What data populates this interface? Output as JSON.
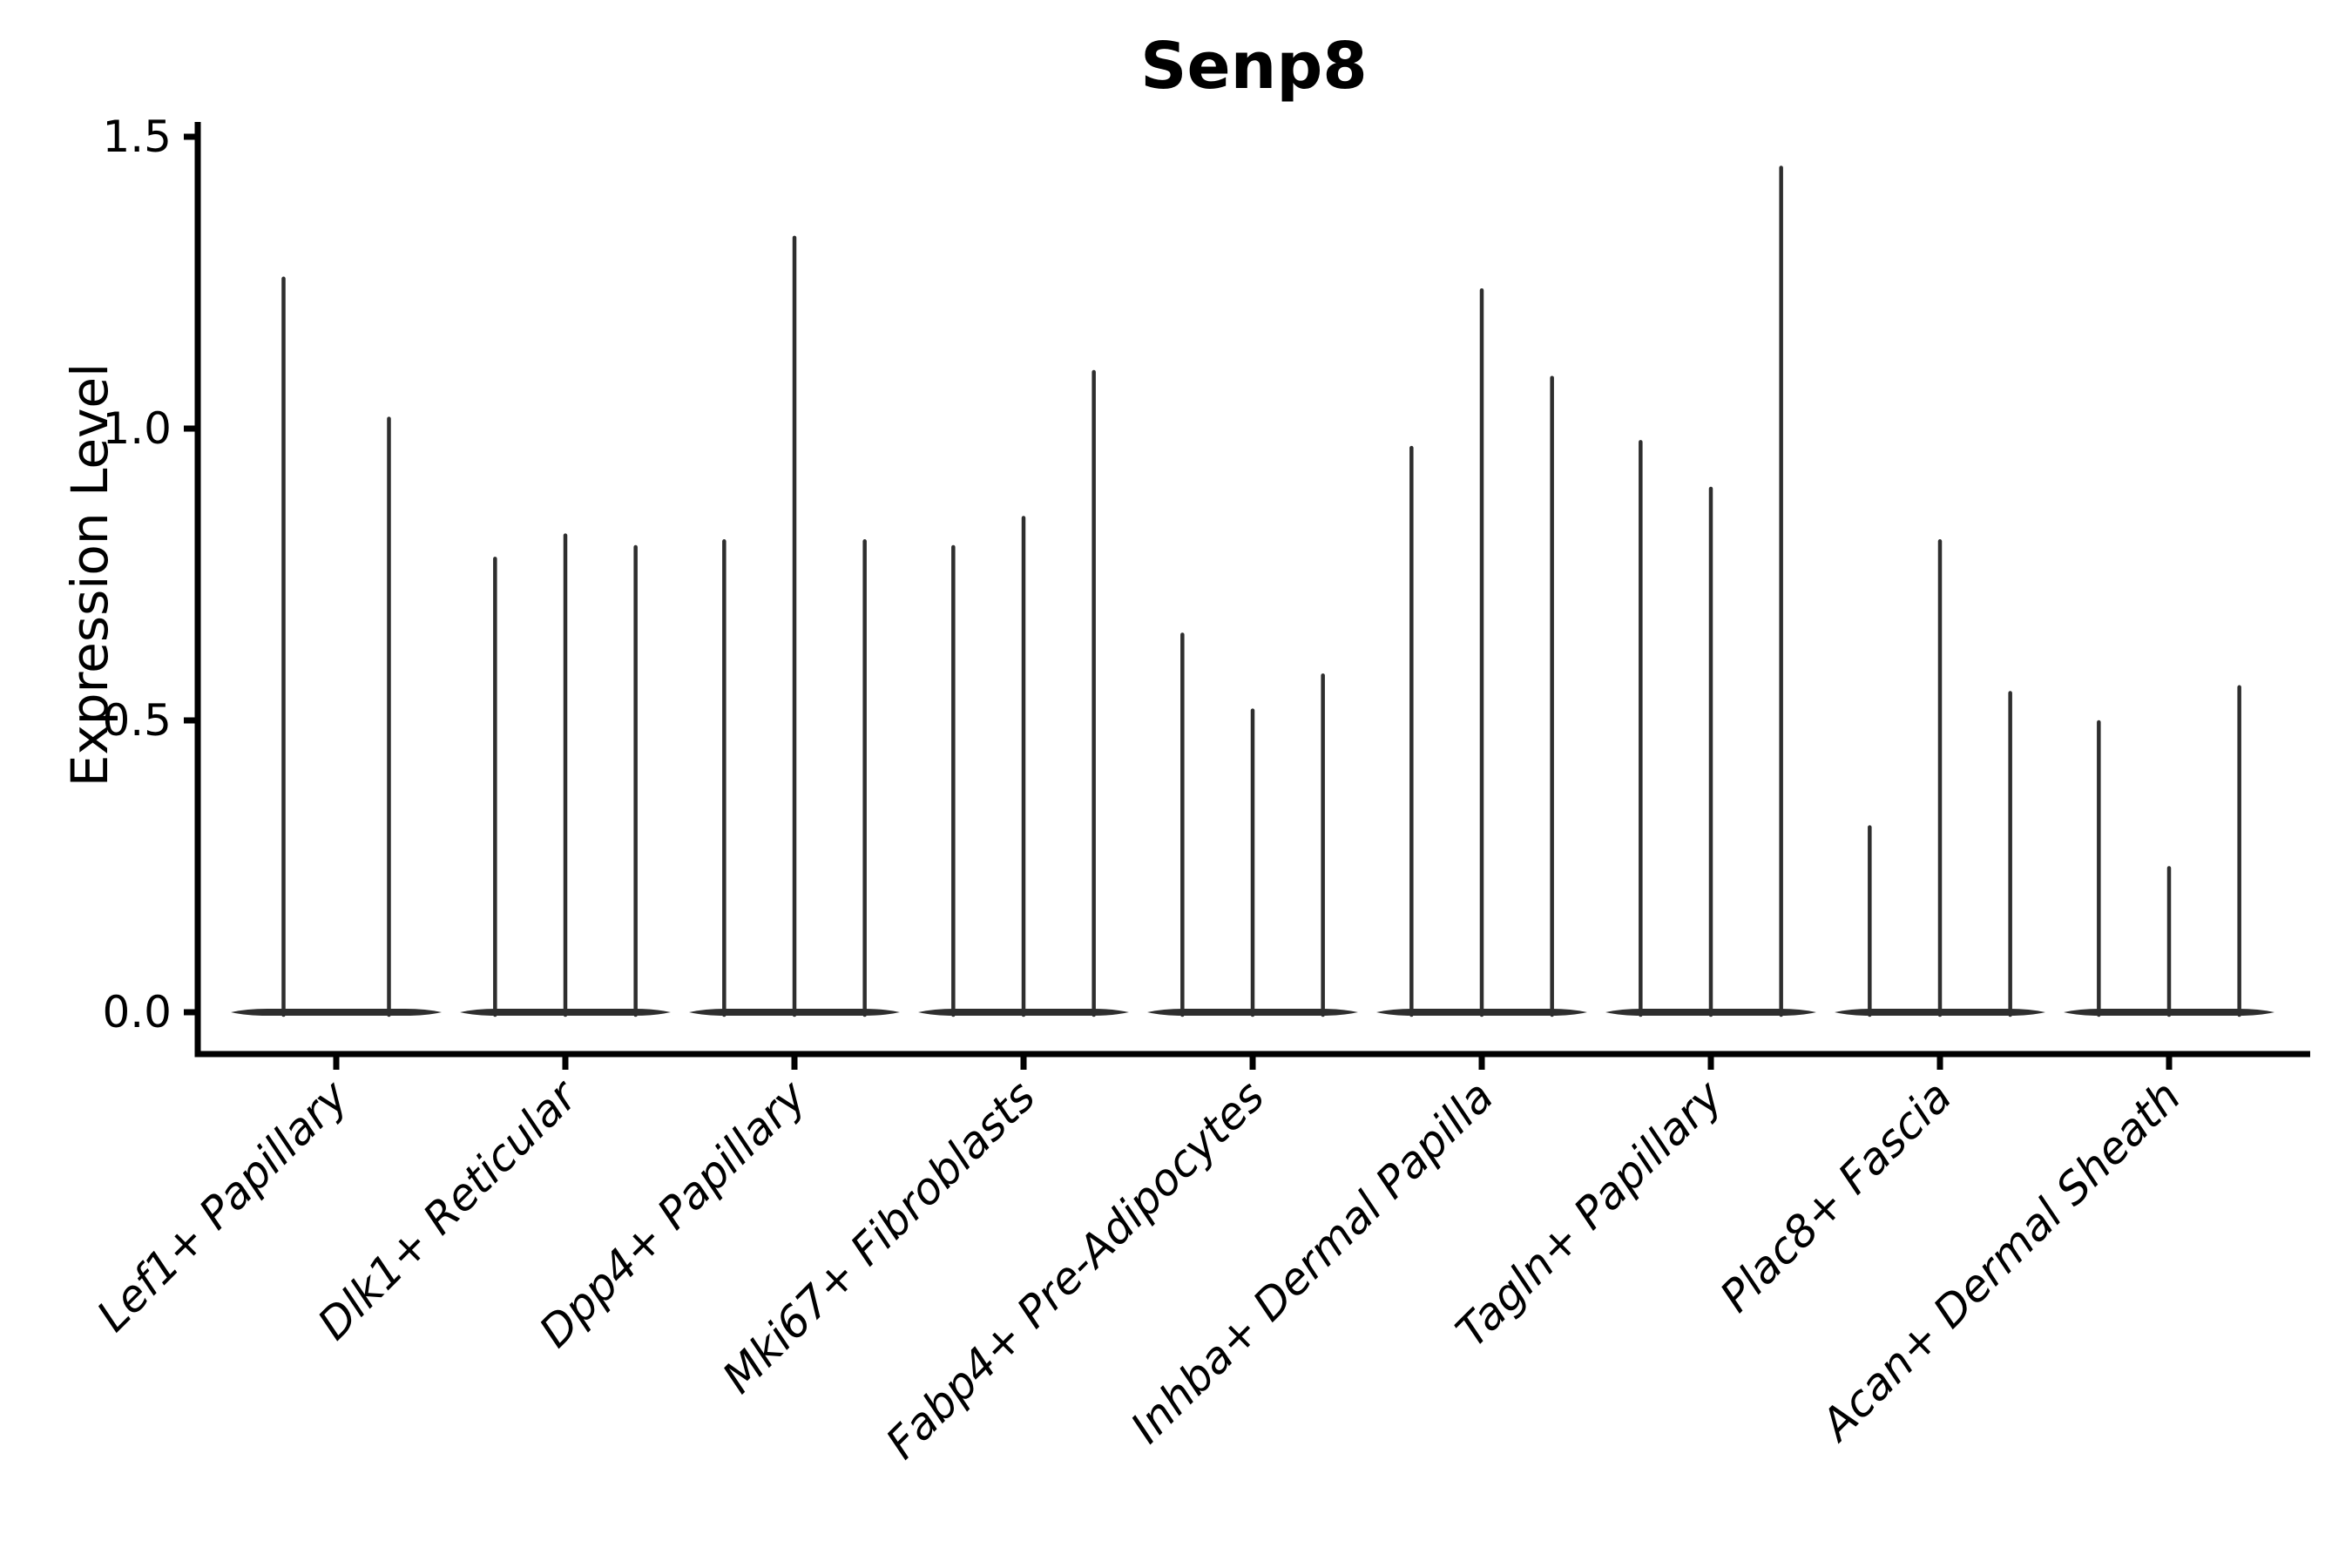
{
  "chart_data": {
    "type": "violin",
    "title": "Senp8",
    "ylabel": "Expression Level",
    "xlabel": "",
    "ylim": [
      0,
      1.52
    ],
    "yticks": [
      0.0,
      0.5,
      1.0,
      1.5
    ],
    "ytick_labels": [
      "0.0",
      "0.5",
      "1.0",
      "1.5"
    ],
    "grid": false,
    "legend": null,
    "violin_color": "#2e2e2e",
    "axis_color": "#000000",
    "text_color": "#000000",
    "categories": [
      "Lef1+ Papillary",
      "Dlk1+ Reticular",
      "Dpp4+ Papillary",
      "Mki67+ Fibroblasts",
      "Fabp4+ Pre-Adipocytes",
      "Inhba+ Dermal Papilla",
      "Tagln+ Papillary",
      "Plac8+ Fascia",
      "Acan+ Dermal Sheath"
    ],
    "violin_note": "Each category shows very thin spike-shaped violins with a wide flat base at expression 0; values below are the top (max expression) of each spike, in axis units.",
    "violin_maxima": [
      [
        1.26,
        1.02
      ],
      [
        0.78,
        0.82,
        0.8
      ],
      [
        0.81,
        1.33,
        0.81
      ],
      [
        0.8,
        0.85,
        1.1
      ],
      [
        0.65,
        0.52,
        0.58
      ],
      [
        0.97,
        1.24,
        1.09
      ],
      [
        0.98,
        0.9,
        1.45
      ],
      [
        0.32,
        0.81,
        0.55
      ],
      [
        0.5,
        0.25,
        0.56
      ]
    ]
  }
}
